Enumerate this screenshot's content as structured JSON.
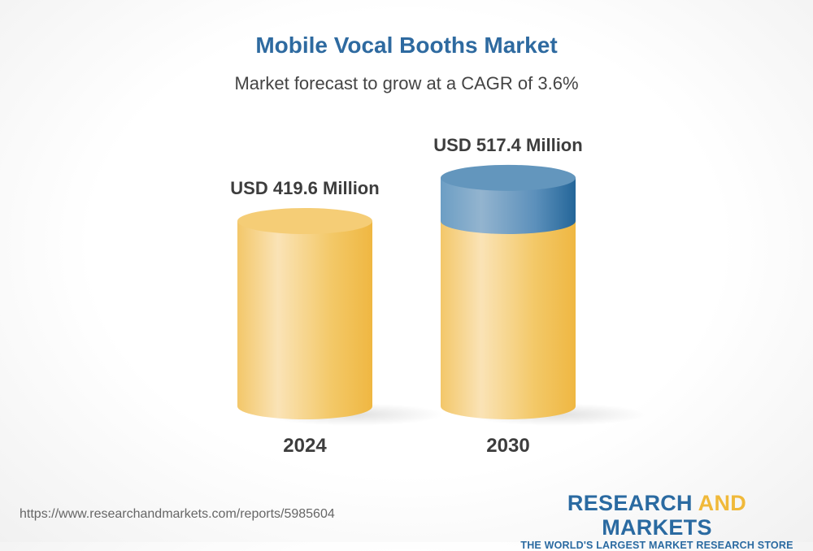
{
  "chart_data": {
    "type": "bar",
    "style": "3d-cylinder",
    "title": "Mobile Vocal Booths Market",
    "subtitle": "Market forecast to grow at a CAGR of 3.6%",
    "categories": [
      "2024",
      "2030"
    ],
    "values": [
      419.6,
      517.4
    ],
    "unit": "USD Million",
    "data_labels": [
      "USD 419.6 Million",
      "USD 517.4 Million"
    ],
    "colors": {
      "base": "#f2c45a",
      "growth": "#2f6b9e"
    },
    "grid": false
  },
  "footer": {
    "url": "https://www.researchandmarkets.com/reports/5985604",
    "logo": {
      "word1": "RESEARCH",
      "word2": "AND",
      "word3": "MARKETS",
      "tagline": "THE WORLD'S LARGEST MARKET RESEARCH STORE"
    }
  }
}
